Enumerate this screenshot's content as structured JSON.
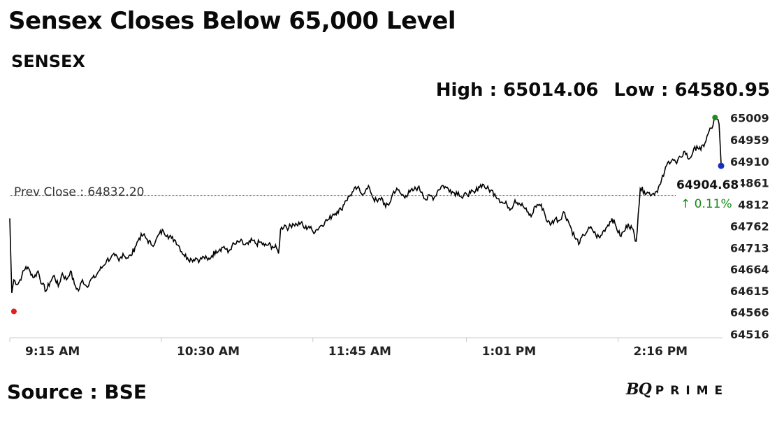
{
  "header": {
    "title": "Sensex Closes Below 65,000 Level",
    "index_name": "SENSEX",
    "high_label": "High : 65014.06",
    "low_label": "Low : 64580.95"
  },
  "footer": {
    "source": "Source : BSE",
    "brand_bq": "BQ",
    "brand_prime": "PRIME"
  },
  "colors": {
    "line": "#000000",
    "prev_close_line": "#cc3333",
    "start_dot": "#e02020",
    "high_dot": "#1f8a1f",
    "last_dot": "#1530c0",
    "change_up": "#1a8a1a"
  },
  "chart_data": {
    "type": "line",
    "title": "SENSEX",
    "xlabel": "",
    "ylabel": "",
    "ylim": [
      64516,
      65035
    ],
    "y_ticks": [
      "64516",
      "64566",
      "64615",
      "64664",
      "64713",
      "64762",
      "64812",
      "64861",
      "64910",
      "64959",
      "65009"
    ],
    "x_ticks": [
      {
        "label": "9:15 AM",
        "t": 0
      },
      {
        "label": "10:30 AM",
        "t": 75
      },
      {
        "label": "11:45 AM",
        "t": 150
      },
      {
        "label": "1:01 PM",
        "t": 226
      },
      {
        "label": "2:16 PM",
        "t": 301
      }
    ],
    "prev_close": 64832.2,
    "prev_close_label": "Prev Close : 64832.20",
    "last_value": "64904.68",
    "change_label": "↑ 0.11%",
    "high": 65014.06,
    "low": 64580.95,
    "series": [
      {
        "values": [
          [
            0,
            64780
          ],
          [
            1,
            64610
          ],
          [
            2,
            64640
          ],
          [
            4,
            64630
          ],
          [
            6,
            64650
          ],
          [
            8,
            64670
          ],
          [
            10,
            64660
          ],
          [
            12,
            64645
          ],
          [
            14,
            64660
          ],
          [
            16,
            64630
          ],
          [
            18,
            64615
          ],
          [
            20,
            64635
          ],
          [
            22,
            64650
          ],
          [
            24,
            64625
          ],
          [
            26,
            64655
          ],
          [
            28,
            64640
          ],
          [
            30,
            64660
          ],
          [
            32,
            64630
          ],
          [
            34,
            64615
          ],
          [
            36,
            64640
          ],
          [
            38,
            64625
          ],
          [
            40,
            64640
          ],
          [
            42,
            64645
          ],
          [
            44,
            64660
          ],
          [
            46,
            64670
          ],
          [
            48,
            64685
          ],
          [
            50,
            64690
          ],
          [
            52,
            64695
          ],
          [
            54,
            64683
          ],
          [
            56,
            64700
          ],
          [
            58,
            64690
          ],
          [
            60,
            64695
          ],
          [
            62,
            64715
          ],
          [
            64,
            64735
          ],
          [
            66,
            64742
          ],
          [
            68,
            64732
          ],
          [
            70,
            64720
          ],
          [
            72,
            64726
          ],
          [
            74,
            64745
          ],
          [
            76,
            64752
          ],
          [
            78,
            64742
          ],
          [
            80,
            64735
          ],
          [
            82,
            64730
          ],
          [
            84,
            64715
          ],
          [
            86,
            64698
          ],
          [
            88,
            64690
          ],
          [
            90,
            64686
          ],
          [
            92,
            64690
          ],
          [
            94,
            64685
          ],
          [
            96,
            64692
          ],
          [
            98,
            64685
          ],
          [
            100,
            64695
          ],
          [
            102,
            64706
          ],
          [
            104,
            64710
          ],
          [
            106,
            64716
          ],
          [
            108,
            64702
          ],
          [
            110,
            64718
          ],
          [
            112,
            64722
          ],
          [
            114,
            64728
          ],
          [
            116,
            64720
          ],
          [
            118,
            64721
          ],
          [
            120,
            64730
          ],
          [
            122,
            64722
          ],
          [
            124,
            64726
          ],
          [
            126,
            64718
          ],
          [
            128,
            64720
          ],
          [
            130,
            64716
          ],
          [
            132,
            64712
          ],
          [
            133,
            64700
          ],
          [
            134,
            64755
          ],
          [
            136,
            64765
          ],
          [
            138,
            64758
          ],
          [
            140,
            64768
          ],
          [
            142,
            64766
          ],
          [
            144,
            64770
          ],
          [
            146,
            64757
          ],
          [
            148,
            64762
          ],
          [
            150,
            64750
          ],
          [
            152,
            64755
          ],
          [
            154,
            64764
          ],
          [
            156,
            64773
          ],
          [
            158,
            64778
          ],
          [
            160,
            64790
          ],
          [
            162,
            64796
          ],
          [
            164,
            64800
          ],
          [
            166,
            64820
          ],
          [
            168,
            64830
          ],
          [
            170,
            64842
          ],
          [
            172,
            64850
          ],
          [
            174,
            64837
          ],
          [
            176,
            64843
          ],
          [
            178,
            64850
          ],
          [
            180,
            64825
          ],
          [
            182,
            64818
          ],
          [
            184,
            64828
          ],
          [
            186,
            64806
          ],
          [
            188,
            64815
          ],
          [
            190,
            64842
          ],
          [
            192,
            64845
          ],
          [
            194,
            64833
          ],
          [
            196,
            64832
          ],
          [
            198,
            64840
          ],
          [
            200,
            64845
          ],
          [
            202,
            64851
          ],
          [
            204,
            64840
          ],
          [
            206,
            64822
          ],
          [
            208,
            64832
          ],
          [
            210,
            64827
          ],
          [
            212,
            64845
          ],
          [
            214,
            64855
          ],
          [
            216,
            64850
          ],
          [
            218,
            64845
          ],
          [
            220,
            64838
          ],
          [
            222,
            64840
          ],
          [
            224,
            64826
          ],
          [
            226,
            64836
          ],
          [
            228,
            64838
          ],
          [
            230,
            64838
          ],
          [
            232,
            64852
          ],
          [
            234,
            64858
          ],
          [
            236,
            64848
          ],
          [
            238,
            64844
          ],
          [
            240,
            64836
          ],
          [
            242,
            64825
          ],
          [
            244,
            64815
          ],
          [
            246,
            64812
          ],
          [
            248,
            64802
          ],
          [
            250,
            64822
          ],
          [
            252,
            64815
          ],
          [
            254,
            64808
          ],
          [
            256,
            64795
          ],
          [
            258,
            64784
          ],
          [
            260,
            64808
          ],
          [
            262,
            64812
          ],
          [
            264,
            64802
          ],
          [
            266,
            64772
          ],
          [
            268,
            64768
          ],
          [
            270,
            64780
          ],
          [
            272,
            64775
          ],
          [
            274,
            64795
          ],
          [
            276,
            64778
          ],
          [
            278,
            64755
          ],
          [
            280,
            64733
          ],
          [
            282,
            64724
          ],
          [
            284,
            64742
          ],
          [
            286,
            64753
          ],
          [
            288,
            64757
          ],
          [
            290,
            64742
          ],
          [
            292,
            64736
          ],
          [
            294,
            64753
          ],
          [
            296,
            64765
          ],
          [
            298,
            64780
          ],
          [
            300,
            64762
          ],
          [
            302,
            64740
          ],
          [
            304,
            64750
          ],
          [
            306,
            64768
          ],
          [
            308,
            64757
          ],
          [
            310,
            64728
          ],
          [
            311,
            64790
          ],
          [
            312,
            64848
          ],
          [
            314,
            64842
          ],
          [
            316,
            64838
          ],
          [
            318,
            64836
          ],
          [
            320,
            64842
          ],
          [
            322,
            64858
          ],
          [
            324,
            64886
          ],
          [
            326,
            64910
          ],
          [
            328,
            64915
          ],
          [
            330,
            64905
          ],
          [
            332,
            64920
          ],
          [
            334,
            64933
          ],
          [
            336,
            64915
          ],
          [
            338,
            64930
          ],
          [
            340,
            64945
          ],
          [
            342,
            64936
          ],
          [
            344,
            64952
          ],
          [
            346,
            64978
          ],
          [
            348,
            64992
          ],
          [
            349,
            65010
          ],
          [
            350,
            65006
          ],
          [
            351,
            64995
          ],
          [
            352,
            64904.68
          ]
        ]
      }
    ]
  }
}
